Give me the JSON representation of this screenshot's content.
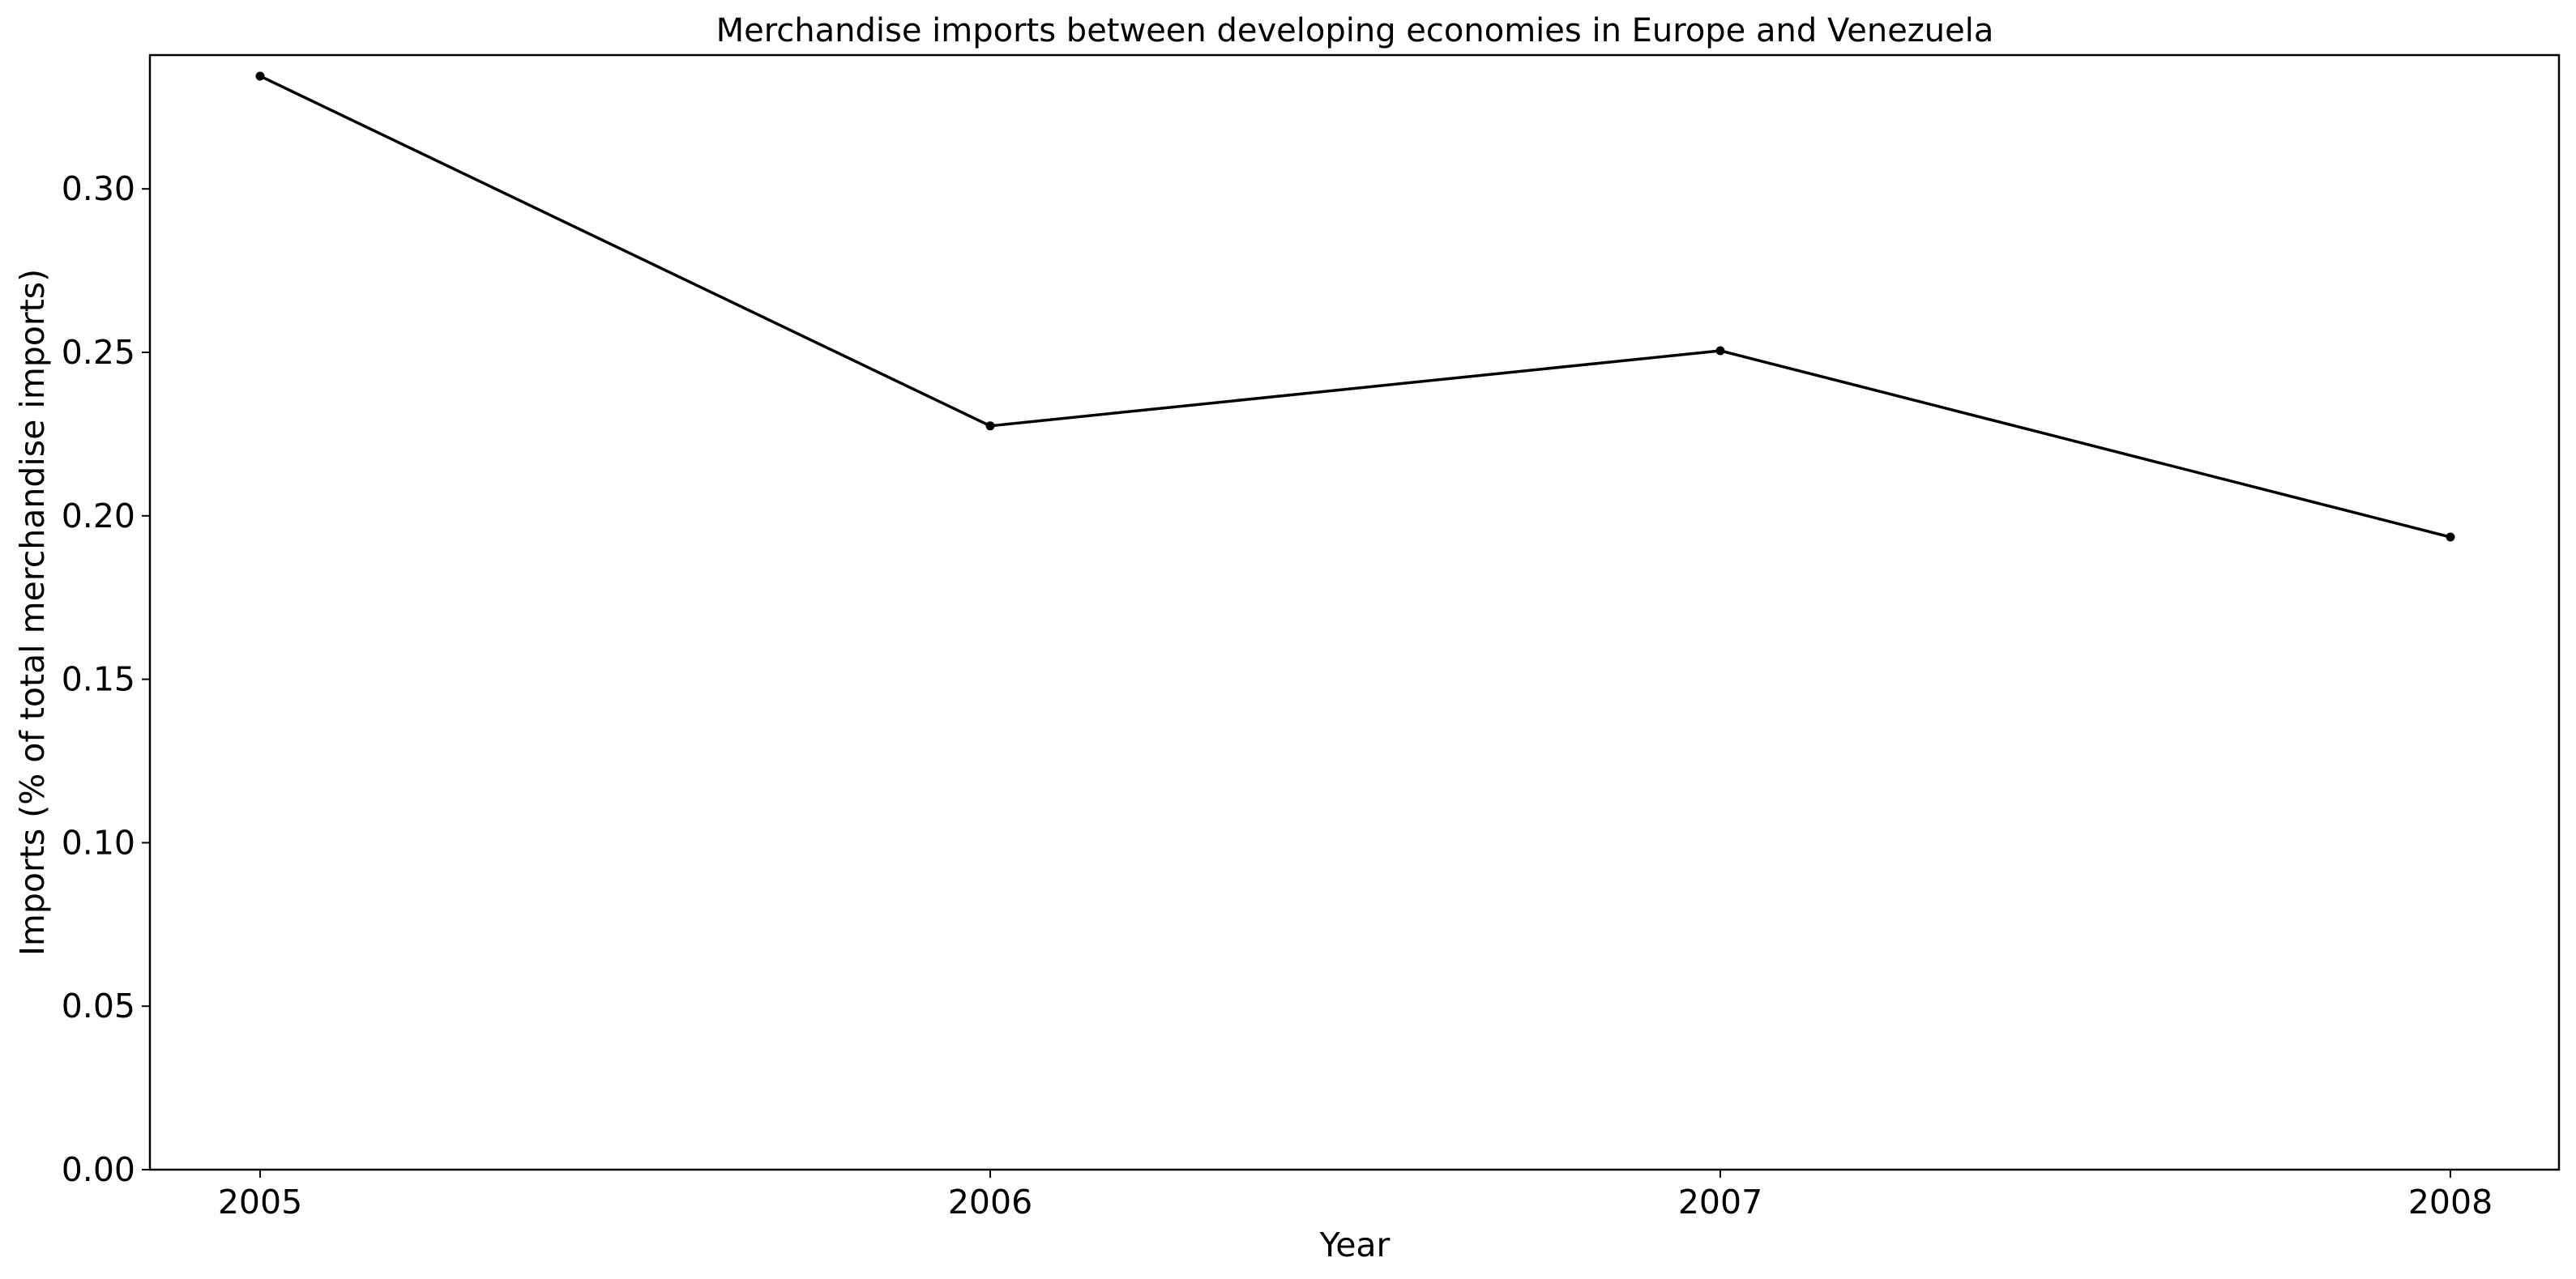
{
  "chart_data": {
    "type": "line",
    "title": "Merchandise imports between developing economies in Europe and Venezuela",
    "xlabel": "Year",
    "ylabel": "Imports (% of total merchandise imports)",
    "x": [
      "2005",
      "2006",
      "2007",
      "2008"
    ],
    "series": [
      {
        "values": [
          0.3345,
          0.2275,
          0.2505,
          0.1935
        ]
      }
    ],
    "yticks": [
      "0.00",
      "0.05",
      "0.10",
      "0.15",
      "0.20",
      "0.25",
      "0.30"
    ],
    "ylim": [
      0,
      0.34
    ],
    "grid": false,
    "line_color": "#000000"
  }
}
